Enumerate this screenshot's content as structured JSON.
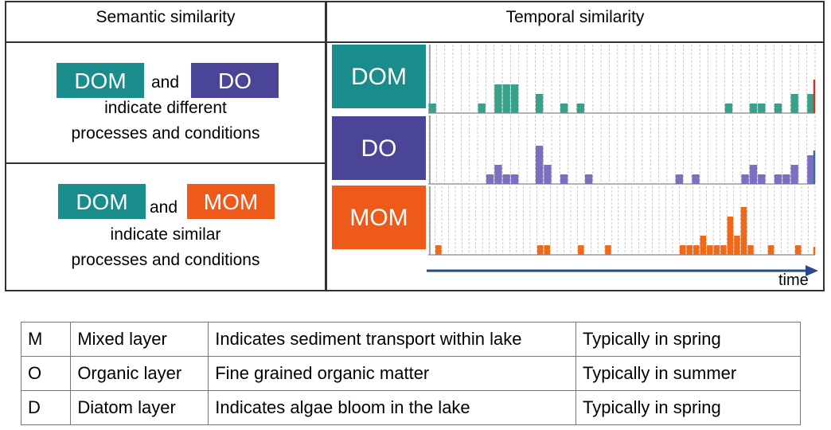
{
  "headers": {
    "semantic": "Semantic similarity",
    "temporal": "Temporal similarity"
  },
  "semantic_rows": [
    {
      "left_box": "DOM",
      "connector": "and",
      "right_box": "DO",
      "line1": "indicate different",
      "line2": "processes and conditions",
      "left_color": "#1a8c8c",
      "right_color": "#4a4596"
    },
    {
      "left_box": "DOM",
      "connector": "and",
      "right_box": "MOM",
      "line1": "indicate similar",
      "line2": "processes and conditions",
      "left_color": "#1a8c8c",
      "right_color": "#ee5a1a"
    }
  ],
  "temporal_rows": [
    {
      "label": "DOM",
      "color": "#1a8c8c",
      "bar_color": "#3aa08a",
      "end_color": "#c0392b"
    },
    {
      "label": "DO",
      "color": "#4a4596",
      "bar_color": "#7b6fc0",
      "end_color": "#3a6aa0"
    },
    {
      "label": "MOM",
      "color": "#ee5a1a",
      "bar_color": "#ee6a1a",
      "end_color": "#ee6a1a"
    }
  ],
  "time_label": "time",
  "arrow_color": "#2a4a8c",
  "legend": [
    {
      "code": "M",
      "name": "Mixed layer",
      "description": "Indicates sediment transport within lake",
      "season": "Typically in spring"
    },
    {
      "code": "O",
      "name": "Organic layer",
      "description": "Fine grained organic matter",
      "season": "Typically in summer"
    },
    {
      "code": "D",
      "name": "Diatom layer",
      "description": "Indicates algae bloom in the lake",
      "season": "Typically in spring"
    }
  ],
  "chart_data": {
    "type": "bar",
    "series": [
      {
        "values": [
          1,
          0,
          0,
          0,
          0,
          0,
          1,
          0,
          3,
          3,
          3,
          0,
          0,
          2,
          0,
          0,
          1,
          0,
          1,
          0,
          0,
          0,
          0,
          0,
          0,
          0,
          0,
          0,
          0,
          0,
          0,
          0,
          0,
          0,
          0,
          0,
          1,
          0,
          0,
          1,
          1,
          0,
          1,
          0,
          2,
          0,
          2
        ]
      },
      {
        "values": [
          0,
          0,
          0,
          0,
          0,
          0,
          0,
          1,
          2,
          1,
          1,
          0,
          0,
          4,
          2,
          0,
          1,
          0,
          0,
          1,
          0,
          0,
          0,
          0,
          0,
          0,
          0,
          0,
          0,
          0,
          1,
          0,
          1,
          0,
          0,
          0,
          0,
          0,
          1,
          2,
          1,
          0,
          1,
          1,
          2,
          0,
          3
        ]
      },
      {
        "values": [
          0,
          1,
          0,
          0,
          0,
          0,
          0,
          0,
          0,
          0,
          0,
          0,
          0,
          0,
          0,
          0,
          1,
          1,
          0,
          0,
          0,
          0,
          1,
          0,
          0,
          0,
          1,
          0,
          0,
          0,
          0,
          0,
          0,
          0,
          0,
          0,
          0,
          1,
          1,
          1,
          2,
          1,
          1,
          1,
          4,
          2,
          5,
          1,
          0,
          0,
          1,
          0,
          0,
          0,
          1,
          0,
          0
        ]
      }
    ]
  }
}
